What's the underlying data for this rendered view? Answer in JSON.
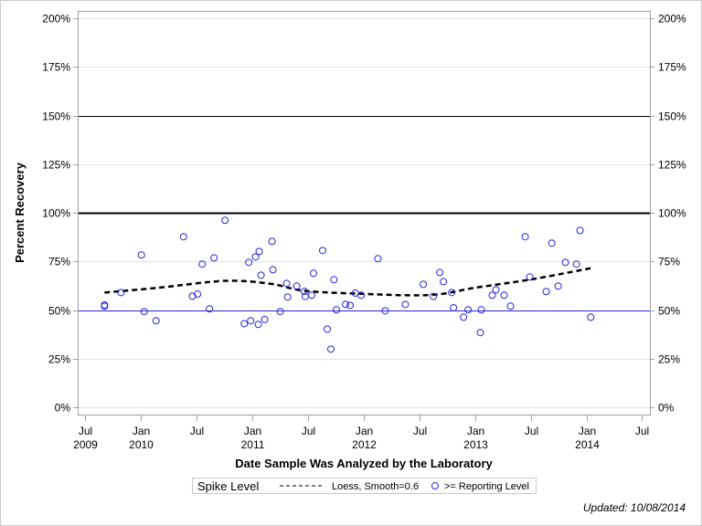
{
  "chart_data": {
    "type": "scatter",
    "xlabel": "Date Sample Was Analyzed by the Laboratory",
    "ylabel": "Percent Recovery",
    "ylim": [
      0,
      200
    ],
    "xlim": [
      "2009-06-06",
      "2014-08-01"
    ],
    "grid": true,
    "y_ticks": [
      "0%",
      "25%",
      "50%",
      "75%",
      "100%",
      "125%",
      "150%",
      "175%",
      "200%"
    ],
    "y_tick_values": [
      0,
      25,
      50,
      75,
      100,
      125,
      150,
      175,
      200
    ],
    "x_ticks": [
      {
        "date": "2009-07-01",
        "label1": "Jul",
        "label2": "2009"
      },
      {
        "date": "2010-01-01",
        "label1": "Jan",
        "label2": "2010"
      },
      {
        "date": "2010-07-01",
        "label1": "Jul",
        "label2": ""
      },
      {
        "date": "2011-01-01",
        "label1": "Jan",
        "label2": "2011"
      },
      {
        "date": "2011-07-01",
        "label1": "Jul",
        "label2": ""
      },
      {
        "date": "2012-01-01",
        "label1": "Jan",
        "label2": "2012"
      },
      {
        "date": "2012-07-01",
        "label1": "Jul",
        "label2": ""
      },
      {
        "date": "2013-01-01",
        "label1": "Jan",
        "label2": "2013"
      },
      {
        "date": "2013-07-01",
        "label1": "Jul",
        "label2": ""
      },
      {
        "date": "2014-01-01",
        "label1": "Jan",
        "label2": "2014"
      },
      {
        "date": "2014-07-01",
        "label1": "Jul",
        "label2": ""
      }
    ],
    "reference_lines": [
      {
        "value": 150,
        "color": "#000000",
        "weight": "thin"
      },
      {
        "value": 100,
        "color": "#000000",
        "weight": "thick"
      },
      {
        "value": 50,
        "color": "#2828d8",
        "weight": "thin"
      }
    ],
    "series": [
      {
        "name": ">= Reporting Level",
        "type": "scatter",
        "color": "#2828d8",
        "points": [
          [
            "2009-09-03",
            52.6
          ],
          [
            "2009-09-03",
            52.0
          ],
          [
            "2009-10-27",
            59.0
          ],
          [
            "2010-01-02",
            78.3
          ],
          [
            "2010-01-11",
            49.2
          ],
          [
            "2010-02-19",
            44.5
          ],
          [
            "2010-05-20",
            87.7
          ],
          [
            "2010-06-18",
            57.1
          ],
          [
            "2010-07-05",
            58.2
          ],
          [
            "2010-07-20",
            73.6
          ],
          [
            "2010-08-13",
            50.6
          ],
          [
            "2010-08-28",
            76.8
          ],
          [
            "2010-10-03",
            96.1
          ],
          [
            "2010-12-05",
            43.0
          ],
          [
            "2010-12-20",
            74.5
          ],
          [
            "2010-12-26",
            44.5
          ],
          [
            "2011-01-11",
            77.3
          ],
          [
            "2011-01-20",
            42.6
          ],
          [
            "2011-01-23",
            80.1
          ],
          [
            "2011-01-29",
            67.9
          ],
          [
            "2011-02-10",
            45.1
          ],
          [
            "2011-03-06",
            85.3
          ],
          [
            "2011-03-09",
            70.7
          ],
          [
            "2011-04-02",
            49.2
          ],
          [
            "2011-04-23",
            63.7
          ],
          [
            "2011-04-26",
            56.7
          ],
          [
            "2011-05-26",
            62.3
          ],
          [
            "2011-06-20",
            59.6
          ],
          [
            "2011-06-23",
            57.0
          ],
          [
            "2011-07-14",
            57.6
          ],
          [
            "2011-07-20",
            68.9
          ],
          [
            "2011-08-19",
            80.6
          ],
          [
            "2011-09-03",
            40.2
          ],
          [
            "2011-09-15",
            29.9
          ],
          [
            "2011-09-25",
            65.6
          ],
          [
            "2011-10-03",
            50.1
          ],
          [
            "2011-11-02",
            52.9
          ],
          [
            "2011-11-17",
            52.4
          ],
          [
            "2011-12-04",
            58.7
          ],
          [
            "2011-12-23",
            57.6
          ],
          [
            "2012-02-16",
            76.4
          ],
          [
            "2012-03-11",
            49.6
          ],
          [
            "2012-05-16",
            52.9
          ],
          [
            "2012-07-14",
            63.2
          ],
          [
            "2012-08-16",
            57.0
          ],
          [
            "2012-09-06",
            69.3
          ],
          [
            "2012-09-18",
            64.6
          ],
          [
            "2012-10-15",
            59.0
          ],
          [
            "2012-10-21",
            51.2
          ],
          [
            "2012-11-23",
            46.3
          ],
          [
            "2012-12-08",
            50.1
          ],
          [
            "2013-01-17",
            38.4
          ],
          [
            "2013-01-20",
            50.1
          ],
          [
            "2013-02-25",
            57.6
          ],
          [
            "2013-03-09",
            60.4
          ],
          [
            "2013-04-05",
            57.6
          ],
          [
            "2013-04-26",
            52.0
          ],
          [
            "2013-06-13",
            87.7
          ],
          [
            "2013-06-28",
            67.0
          ],
          [
            "2013-08-21",
            59.5
          ],
          [
            "2013-09-08",
            84.4
          ],
          [
            "2013-09-29",
            62.3
          ],
          [
            "2013-10-23",
            74.5
          ],
          [
            "2013-11-28",
            73.6
          ],
          [
            "2013-12-10",
            90.9
          ],
          [
            "2014-01-14",
            46.3
          ]
        ]
      },
      {
        "name": "Loess, Smooth=0.6",
        "type": "line",
        "style": "dashed",
        "color": "#000000",
        "points": [
          [
            "2009-09-03",
            59.0
          ],
          [
            "2010-03-01",
            61.5
          ],
          [
            "2010-10-03",
            65.0
          ],
          [
            "2011-03-01",
            63.5
          ],
          [
            "2011-06-15",
            60.0
          ],
          [
            "2011-12-01",
            58.5
          ],
          [
            "2012-08-01",
            57.7
          ],
          [
            "2013-01-01",
            61.5
          ],
          [
            "2013-07-01",
            65.7
          ],
          [
            "2014-01-14",
            71.5
          ]
        ]
      }
    ],
    "legend": {
      "position": "bottom",
      "title": "Spike Level",
      "items": [
        {
          "label": "Loess, Smooth=0.6",
          "symbol": "dashed-line"
        },
        {
          "label": ">= Reporting Level",
          "symbol": "open-circle"
        }
      ]
    },
    "footnote": "Updated: 10/08/2014"
  }
}
